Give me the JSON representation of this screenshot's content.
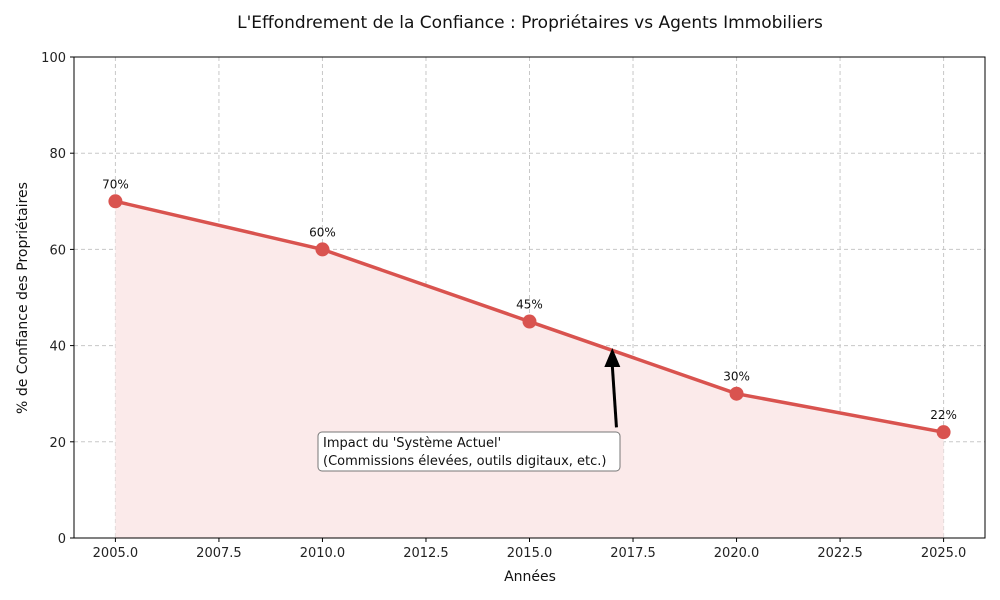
{
  "chart_data": {
    "type": "line",
    "title": "L'Effondrement de la Confiance : Propriétaires vs Agents Immobiliers",
    "xlabel": "Années",
    "ylabel": "% de Confiance des Propriétaires",
    "x": [
      2005,
      2010,
      2015,
      2020,
      2025
    ],
    "values": [
      70,
      60,
      45,
      30,
      22
    ],
    "data_labels": [
      "70%",
      "60%",
      "45%",
      "30%",
      "22%"
    ],
    "xlim": [
      2004,
      2026
    ],
    "ylim": [
      0,
      100
    ],
    "xticks": [
      2005,
      2007.5,
      2010,
      2012.5,
      2015,
      2017.5,
      2020,
      2022.5,
      2025
    ],
    "xtick_labels": [
      "2005.0",
      "2007.5",
      "2010.0",
      "2012.5",
      "2015.0",
      "2017.5",
      "2020.0",
      "2022.5",
      "2025.0"
    ],
    "yticks": [
      0,
      20,
      40,
      60,
      80,
      100
    ],
    "ytick_labels": [
      "0",
      "20",
      "40",
      "60",
      "80",
      "100"
    ],
    "grid": true,
    "area_fill": true,
    "colors": {
      "line": "#d9534f",
      "fill": "#fbeaea",
      "grid": "#c8c8c8"
    },
    "annotation": {
      "text_line1": "Impact du 'Système Actuel'",
      "text_line2": "(Commissions élevées, outils digitaux, etc.)",
      "arrow_target": [
        2017,
        39.5
      ],
      "arrow_tail": [
        2017.1,
        23
      ]
    }
  }
}
